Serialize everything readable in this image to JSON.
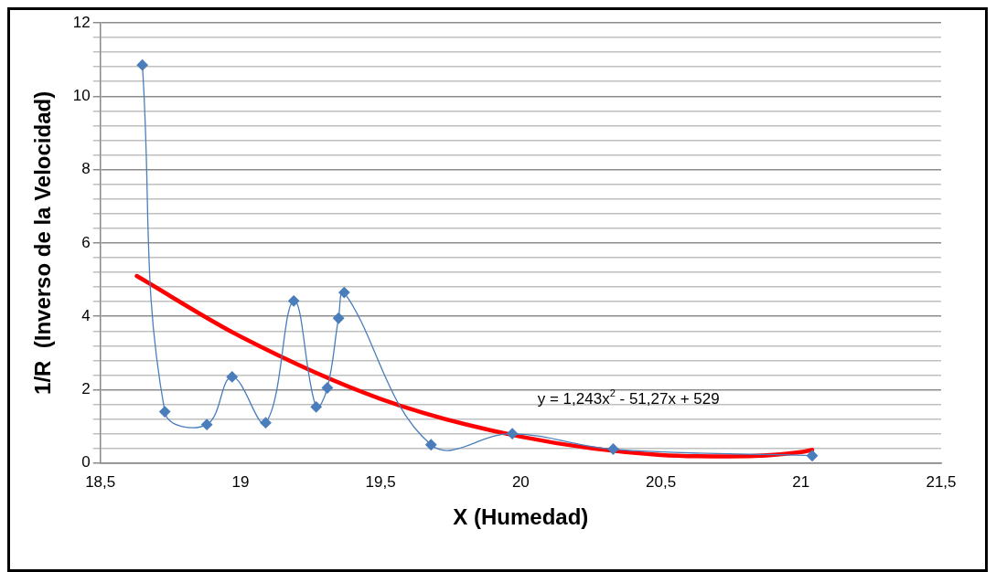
{
  "chart_data": {
    "type": "line",
    "xlabel": "X (Humedad)",
    "ylabel": "1/R  (Inverso de la Velocidad)",
    "xlim": [
      18.5,
      21.5
    ],
    "xticks": [
      {
        "value": 18.5,
        "label": "18,5"
      },
      19,
      {
        "value": 19.5,
        "label": "19,5"
      },
      20,
      {
        "value": 20.5,
        "label": "20,5"
      },
      21,
      {
        "value": 21.5,
        "label": "21,5"
      }
    ],
    "ylim": [
      0,
      12
    ],
    "yticks": [
      0,
      {
        "value": 0.4,
        "label": null
      },
      {
        "value": 0.8,
        "label": null
      },
      {
        "value": 1.2,
        "label": null
      },
      {
        "value": 1.6,
        "label": null
      },
      2,
      {
        "value": 2.4,
        "label": null
      },
      {
        "value": 2.8,
        "label": null
      },
      {
        "value": 3.2,
        "label": null
      },
      {
        "value": 3.6,
        "label": null
      },
      4,
      {
        "value": 4.4,
        "label": null
      },
      {
        "value": 4.8,
        "label": null
      },
      {
        "value": 5.2,
        "label": null
      },
      {
        "value": 5.6,
        "label": null
      },
      6,
      {
        "value": 6.4,
        "label": null
      },
      {
        "value": 6.8,
        "label": null
      },
      {
        "value": 7.2,
        "label": null
      },
      {
        "value": 7.6,
        "label": null
      },
      8,
      {
        "value": 8.4,
        "label": null
      },
      {
        "value": 8.8,
        "label": null
      },
      {
        "value": 9.2,
        "label": null
      },
      {
        "value": 9.6,
        "label": null
      },
      10,
      {
        "value": 10.4,
        "label": null
      },
      {
        "value": 10.8,
        "label": null
      },
      {
        "value": 11.2,
        "label": null
      },
      {
        "value": 11.6,
        "label": null
      },
      12
    ],
    "grid": "y",
    "legend": false,
    "marker": "diamond",
    "series": [
      {
        "color": "#4a7ebb",
        "x": [
          18.65,
          18.73,
          18.88,
          18.97,
          19.09,
          19.19,
          19.27,
          19.31,
          19.35,
          19.37,
          19.68,
          19.97,
          20.33,
          21.04
        ],
        "values": [
          10.85,
          1.4,
          1.05,
          2.35,
          1.1,
          4.42,
          1.53,
          2.05,
          3.95,
          4.65,
          0.5,
          0.8,
          0.38,
          0.2
        ]
      },
      {
        "type": "line",
        "marker": "none",
        "color": "#ff0000",
        "x": [
          18.63,
          19,
          19.5,
          20,
          20.5,
          20.75,
          21,
          21.04
        ],
        "values": [
          5.1,
          3.45,
          1.75,
          0.72,
          0.22,
          0.18,
          0.3,
          0.36
        ]
      }
    ],
    "annotations": [
      "y = 1,243x$^{2}$ - 51,27x + 529"
    ]
  }
}
